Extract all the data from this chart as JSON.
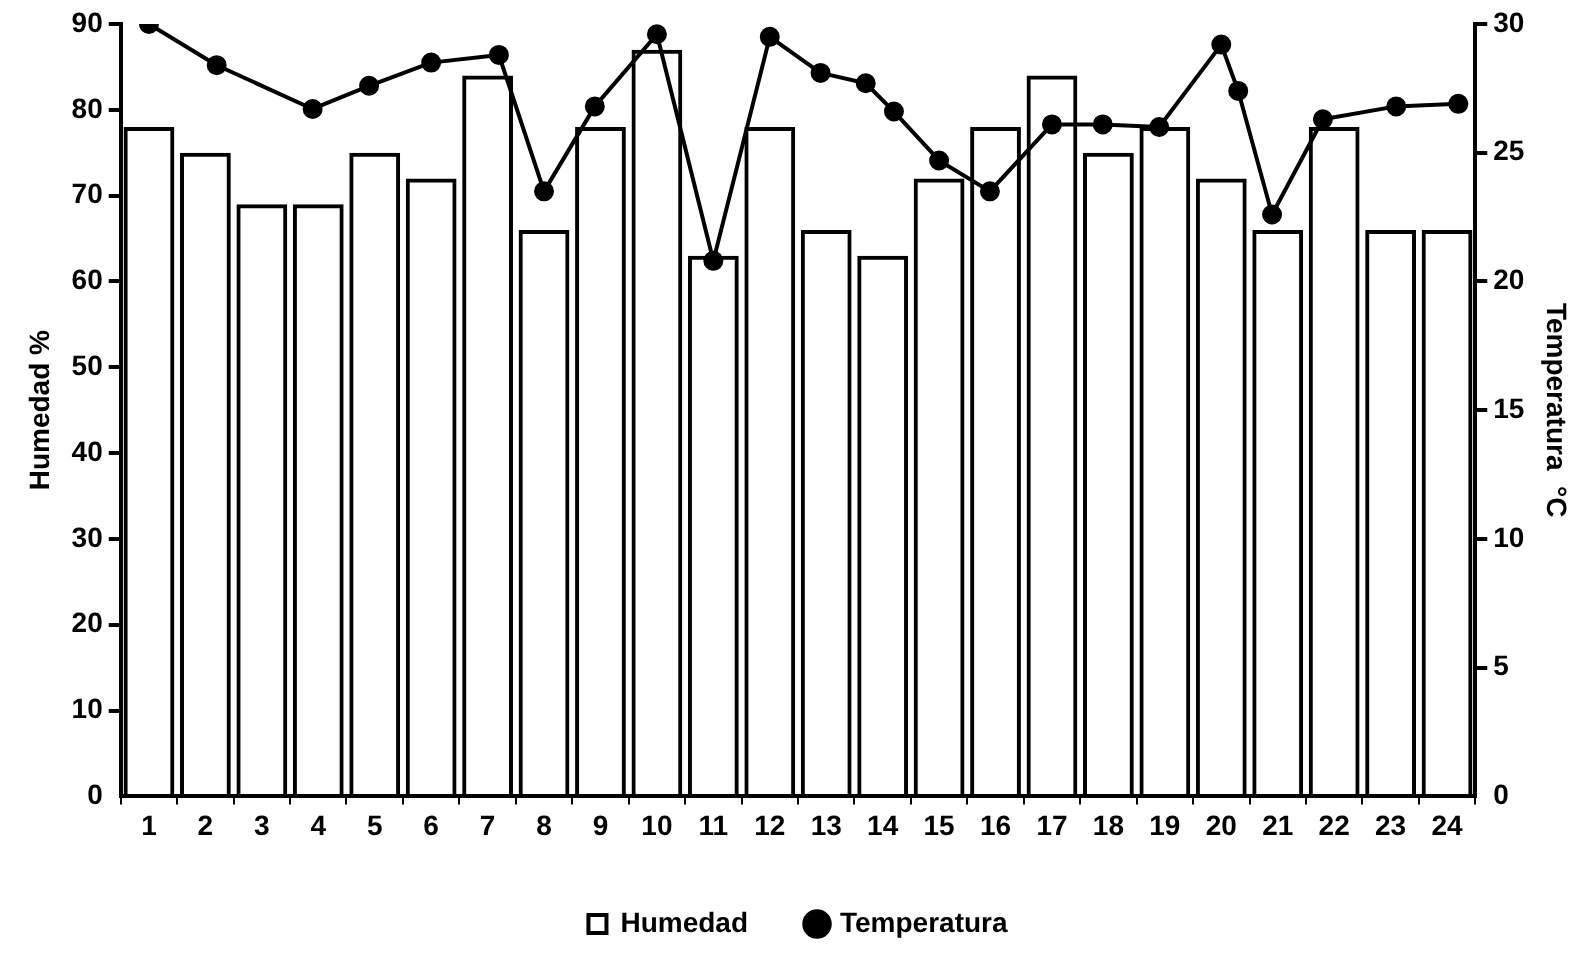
{
  "chart_data": {
    "type": "bar",
    "ylabel": "Humedad %",
    "y2label": "Temperatura  °C",
    "x": [
      1,
      2,
      3,
      4,
      5,
      6,
      7,
      8,
      9,
      10,
      11,
      12,
      13,
      14,
      15,
      16,
      17,
      18,
      19,
      20,
      21,
      22,
      23,
      24
    ],
    "xlim": [
      0.5,
      24.5
    ],
    "xticks": [
      1,
      2,
      3,
      4,
      5,
      6,
      7,
      8,
      9,
      10,
      11,
      12,
      13,
      14,
      15,
      16,
      17,
      18,
      19,
      20,
      21,
      22,
      23,
      24
    ],
    "series": [
      {
        "name": "Humedad",
        "color": "#000000",
        "values": [
          78,
          75,
          69,
          69,
          75,
          72,
          84,
          66,
          78,
          87,
          63,
          78,
          66,
          63,
          72,
          78,
          84,
          75,
          78,
          72,
          66,
          78,
          66,
          66
        ]
      },
      {
        "name": "Temperatura",
        "type": "line",
        "axis": "y2",
        "color": "#000000",
        "x": [
          1,
          2.2,
          3.9,
          4.9,
          6,
          7.2,
          8,
          8.9,
          10,
          11,
          12,
          12.9,
          13.7,
          14.2,
          15,
          15.9,
          17,
          17.9,
          18.9,
          20,
          20.3,
          20.9,
          21.8,
          23.1,
          24.2
        ],
        "values": [
          30,
          28.4,
          26.7,
          27.6,
          28.5,
          28.8,
          23.5,
          26.8,
          29.6,
          20.8,
          29.5,
          28.1,
          27.7,
          26.6,
          24.7,
          23.5,
          26.1,
          26.1,
          26,
          29.2,
          27.4,
          22.6,
          26.3,
          26.8,
          26.9
        ]
      }
    ],
    "ylim": [
      0,
      90
    ],
    "yticks": [
      0,
      10,
      20,
      30,
      40,
      50,
      60,
      70,
      80,
      90
    ],
    "y2lim": [
      0,
      30
    ],
    "y2ticks": [
      0,
      5,
      10,
      15,
      20,
      25,
      30
    ],
    "grid": false,
    "legend": "bottom",
    "marker": "circle",
    "line_style": "solid"
  }
}
